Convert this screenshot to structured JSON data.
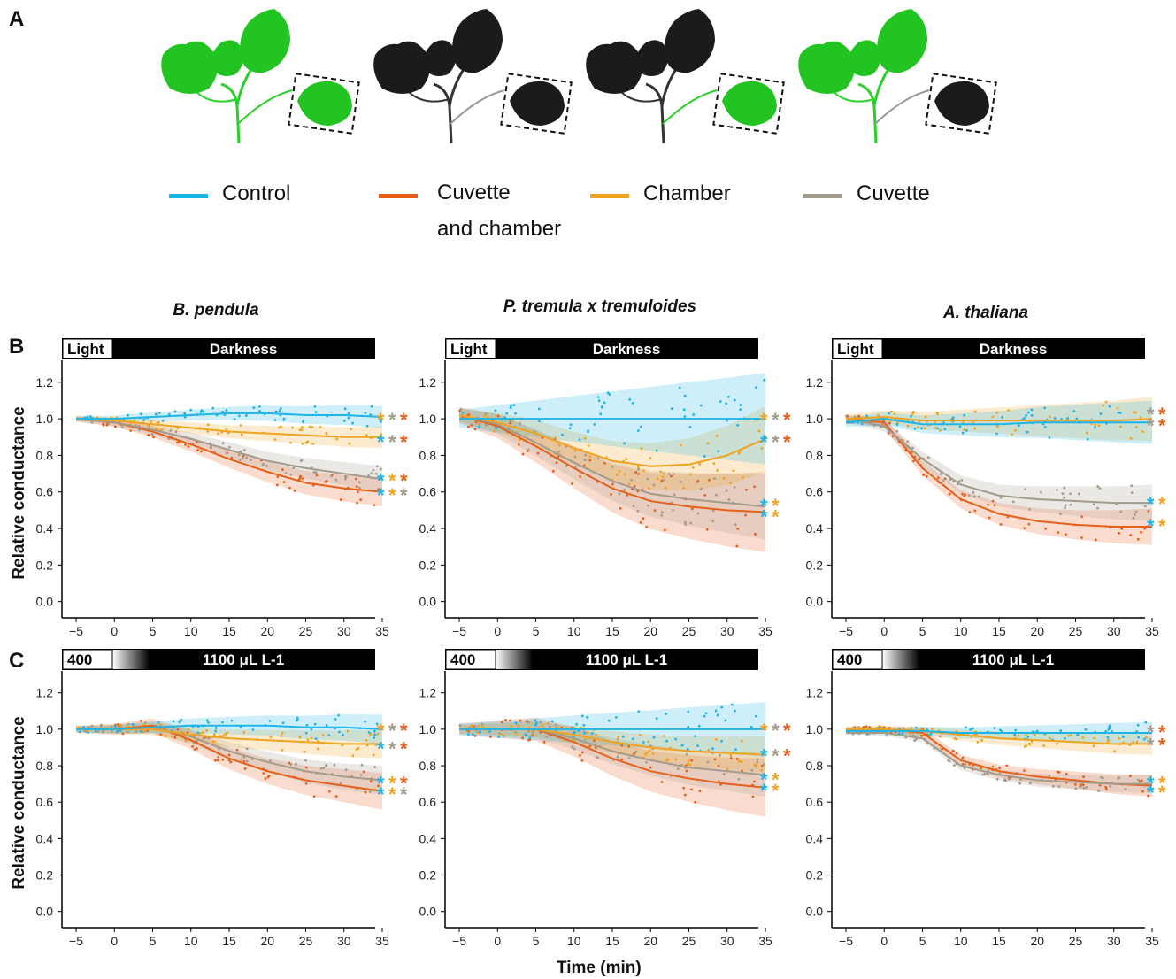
{
  "panels": {
    "a": "A",
    "b": "B",
    "c": "C"
  },
  "legend": [
    {
      "label": "Control",
      "color": "#1fb4e6"
    },
    {
      "label": "Cuvette",
      "label2": "and chamber",
      "color": "#e5601a"
    },
    {
      "label": "Chamber",
      "color": "#f0a320"
    },
    {
      "label": "Cuvette",
      "color": "#a39b8c"
    }
  ],
  "leaf_icons": [
    {
      "plant": "green",
      "boxed_leaf": "green"
    },
    {
      "plant": "black",
      "boxed_leaf": "black"
    },
    {
      "plant": "black",
      "boxed_leaf": "green"
    },
    {
      "plant": "green",
      "boxed_leaf": "black"
    }
  ],
  "species": [
    "B. pendula",
    "P. tremula x tremuloides",
    "A. thaliana"
  ],
  "row_b": {
    "bar_left": "Light",
    "bar_right": "Darkness"
  },
  "row_c": {
    "bar_left": "400",
    "bar_right": "1100 μL L-1"
  },
  "axes": {
    "ylabel": "Relative conductance",
    "xlabel": "Time (min)",
    "xticks": [
      -5,
      0,
      5,
      10,
      15,
      20,
      25,
      30,
      35
    ],
    "yticks": [
      0.0,
      0.2,
      0.4,
      0.6,
      0.8,
      1.0,
      1.2
    ],
    "xlim": [
      -5,
      35
    ],
    "ylim": [
      -0.05,
      1.32
    ]
  },
  "chart_data": [
    {
      "type": "line",
      "title": "B. pendula",
      "row": "B",
      "treatment": "Light / Darkness",
      "x": [
        -5,
        0,
        5,
        10,
        15,
        20,
        25,
        30,
        35
      ],
      "series": [
        {
          "name": "Control",
          "values": [
            1.0,
            1.0,
            1.01,
            1.02,
            1.03,
            1.03,
            1.02,
            1.02,
            1.01
          ],
          "band": 0.06,
          "stars": []
        },
        {
          "name": "Chamber",
          "values": [
            1.0,
            0.99,
            0.97,
            0.95,
            0.93,
            0.92,
            0.91,
            0.9,
            0.9
          ],
          "band": 0.06,
          "stars": [
            "Control",
            "Cuvette",
            "Cuvette and chamber"
          ]
        },
        {
          "name": "Cuvette",
          "values": [
            1.0,
            0.98,
            0.94,
            0.89,
            0.83,
            0.77,
            0.73,
            0.7,
            0.67
          ],
          "band": 0.07,
          "stars": [
            "Control",
            "Cuvette",
            "Cuvette and chamber"
          ]
        },
        {
          "name": "Cuvette and chamber",
          "values": [
            1.0,
            0.98,
            0.93,
            0.86,
            0.78,
            0.71,
            0.65,
            0.62,
            0.6
          ],
          "band": 0.08,
          "stars": [
            "Control",
            "Chamber",
            "Cuvette and chamber"
          ]
        }
      ],
      "star_rows": [
        {
          "y": 1.0,
          "colors": [
            "Chamber",
            "Cuvette",
            "Cuvette and chamber"
          ]
        },
        {
          "y": 0.88,
          "colors": [
            "Control",
            "Cuvette",
            "Cuvette and chamber"
          ]
        },
        {
          "y": 0.67,
          "colors": [
            "Control",
            "Chamber",
            "Cuvette and chamber"
          ]
        },
        {
          "y": 0.59,
          "colors": [
            "Control",
            "Chamber",
            "Cuvette"
          ]
        }
      ]
    },
    {
      "type": "line",
      "title": "P. tremula x tremuloides",
      "row": "B",
      "treatment": "Light / Darkness",
      "x": [
        -5,
        0,
        5,
        10,
        15,
        20,
        25,
        30,
        35
      ],
      "series": [
        {
          "name": "Control",
          "values": [
            1.0,
            1.0,
            1.0,
            1.0,
            1.0,
            1.0,
            1.0,
            1.0,
            1.0
          ],
          "band": 0.25,
          "stars": []
        },
        {
          "name": "Chamber",
          "values": [
            1.02,
            0.98,
            0.92,
            0.84,
            0.77,
            0.74,
            0.75,
            0.8,
            0.89
          ],
          "band": 0.18,
          "stars": []
        },
        {
          "name": "Cuvette",
          "values": [
            1.02,
            0.97,
            0.87,
            0.76,
            0.66,
            0.59,
            0.56,
            0.54,
            0.52
          ],
          "band": 0.18,
          "stars": []
        },
        {
          "name": "Cuvette and chamber",
          "values": [
            1.02,
            0.96,
            0.85,
            0.73,
            0.62,
            0.55,
            0.52,
            0.5,
            0.49
          ],
          "band": 0.22,
          "stars": []
        }
      ],
      "star_rows": [
        {
          "y": 1.0,
          "colors": [
            "Chamber",
            "Cuvette",
            "Cuvette and chamber"
          ]
        },
        {
          "y": 0.88,
          "colors": [
            "Control",
            "Cuvette",
            "Cuvette and chamber"
          ]
        },
        {
          "y": 0.53,
          "colors": [
            "Control",
            "Chamber"
          ]
        },
        {
          "y": 0.47,
          "colors": [
            "Control",
            "Chamber"
          ]
        }
      ]
    },
    {
      "type": "line",
      "title": "A. thaliana",
      "row": "B",
      "treatment": "Light / Darkness",
      "x": [
        -5,
        0,
        5,
        10,
        15,
        20,
        25,
        30,
        35
      ],
      "series": [
        {
          "name": "Control",
          "values": [
            0.98,
            1.0,
            0.97,
            0.97,
            0.97,
            0.98,
            0.98,
            0.98,
            0.98
          ],
          "band": 0.12,
          "stars": []
        },
        {
          "name": "Chamber",
          "values": [
            1.0,
            1.01,
            0.99,
            0.99,
            0.99,
            0.99,
            0.99,
            0.99,
            1.0
          ],
          "band": 0.12,
          "stars": []
        },
        {
          "name": "Cuvette",
          "values": [
            1.0,
            0.96,
            0.78,
            0.64,
            0.58,
            0.56,
            0.55,
            0.54,
            0.54
          ],
          "band": 0.1,
          "stars": []
        },
        {
          "name": "Cuvette and chamber",
          "values": [
            1.0,
            0.98,
            0.73,
            0.56,
            0.48,
            0.44,
            0.42,
            0.41,
            0.41
          ],
          "band": 0.1,
          "stars": []
        }
      ],
      "star_rows": [
        {
          "y": 1.03,
          "colors": [
            "Cuvette",
            "Cuvette and chamber"
          ]
        },
        {
          "y": 0.97,
          "colors": [
            "Cuvette",
            "Cuvette and chamber"
          ]
        },
        {
          "y": 0.54,
          "colors": [
            "Control",
            "Chamber"
          ]
        },
        {
          "y": 0.42,
          "colors": [
            "Control",
            "Chamber"
          ]
        }
      ]
    },
    {
      "type": "line",
      "title": "B. pendula",
      "row": "C",
      "treatment": "400 / 1100 μL L-1",
      "x": [
        -5,
        0,
        5,
        10,
        15,
        20,
        25,
        30,
        35
      ],
      "series": [
        {
          "name": "Control",
          "values": [
            1.0,
            1.0,
            1.01,
            1.02,
            1.02,
            1.02,
            1.01,
            1.01,
            1.0
          ],
          "band": 0.08,
          "stars": []
        },
        {
          "name": "Chamber",
          "values": [
            1.0,
            1.0,
            1.0,
            0.97,
            0.95,
            0.94,
            0.93,
            0.92,
            0.92
          ],
          "band": 0.08,
          "stars": []
        },
        {
          "name": "Cuvette",
          "values": [
            1.0,
            1.0,
            1.01,
            0.96,
            0.88,
            0.82,
            0.77,
            0.74,
            0.72
          ],
          "band": 0.08,
          "stars": []
        },
        {
          "name": "Cuvette and chamber",
          "values": [
            1.0,
            1.0,
            1.02,
            0.94,
            0.84,
            0.77,
            0.72,
            0.69,
            0.66
          ],
          "band": 0.1,
          "stars": []
        }
      ],
      "star_rows": [
        {
          "y": 1.0,
          "colors": [
            "Chamber",
            "Cuvette",
            "Cuvette and chamber"
          ]
        },
        {
          "y": 0.9,
          "colors": [
            "Control",
            "Cuvette",
            "Cuvette and chamber"
          ]
        },
        {
          "y": 0.71,
          "colors": [
            "Control",
            "Chamber",
            "Cuvette and chamber"
          ]
        },
        {
          "y": 0.65,
          "colors": [
            "Control",
            "Chamber",
            "Cuvette"
          ]
        }
      ]
    },
    {
      "type": "line",
      "title": "P. tremula x tremuloides",
      "row": "C",
      "treatment": "400 / 1100 μL L-1",
      "x": [
        -5,
        0,
        5,
        10,
        15,
        20,
        25,
        30,
        35
      ],
      "series": [
        {
          "name": "Control",
          "values": [
            1.0,
            1.0,
            1.0,
            1.0,
            1.0,
            1.0,
            1.0,
            1.0,
            1.0
          ],
          "band": 0.15,
          "stars": []
        },
        {
          "name": "Chamber",
          "values": [
            1.0,
            1.0,
            1.0,
            0.97,
            0.93,
            0.9,
            0.88,
            0.87,
            0.86
          ],
          "band": 0.1,
          "stars": []
        },
        {
          "name": "Cuvette",
          "values": [
            1.0,
            1.0,
            1.0,
            0.95,
            0.88,
            0.83,
            0.79,
            0.77,
            0.75
          ],
          "band": 0.12,
          "stars": []
        },
        {
          "name": "Cuvette and chamber",
          "values": [
            1.0,
            1.0,
            1.0,
            0.93,
            0.84,
            0.77,
            0.73,
            0.7,
            0.68
          ],
          "band": 0.16,
          "stars": []
        }
      ],
      "star_rows": [
        {
          "y": 1.0,
          "colors": [
            "Chamber",
            "Cuvette",
            "Cuvette and chamber"
          ]
        },
        {
          "y": 0.86,
          "colors": [
            "Control",
            "Cuvette",
            "Cuvette and chamber"
          ]
        },
        {
          "y": 0.73,
          "colors": [
            "Control",
            "Chamber"
          ]
        },
        {
          "y": 0.67,
          "colors": [
            "Control",
            "Chamber"
          ]
        }
      ]
    },
    {
      "type": "line",
      "title": "A. thaliana",
      "row": "C",
      "treatment": "400 / 1100 μL L-1",
      "x": [
        -5,
        0,
        5,
        10,
        15,
        20,
        25,
        30,
        35
      ],
      "series": [
        {
          "name": "Control",
          "values": [
            0.99,
            0.99,
            0.99,
            0.98,
            0.98,
            0.98,
            0.98,
            0.98,
            0.98
          ],
          "band": 0.06,
          "stars": []
        },
        {
          "name": "Chamber",
          "values": [
            1.0,
            1.0,
            0.99,
            0.97,
            0.95,
            0.94,
            0.93,
            0.92,
            0.92
          ],
          "band": 0.06,
          "stars": []
        },
        {
          "name": "Cuvette",
          "values": [
            0.98,
            0.98,
            0.95,
            0.8,
            0.75,
            0.72,
            0.71,
            0.7,
            0.7
          ],
          "band": 0.05,
          "stars": []
        },
        {
          "name": "Cuvette and chamber",
          "values": [
            1.0,
            1.0,
            0.98,
            0.83,
            0.77,
            0.74,
            0.72,
            0.7,
            0.69
          ],
          "band": 0.06,
          "stars": []
        }
      ],
      "star_rows": [
        {
          "y": 0.99,
          "colors": [
            "Cuvette",
            "Cuvette and chamber"
          ]
        },
        {
          "y": 0.92,
          "colors": [
            "Cuvette",
            "Cuvette and chamber"
          ]
        },
        {
          "y": 0.71,
          "colors": [
            "Control",
            "Chamber"
          ]
        },
        {
          "y": 0.66,
          "colors": [
            "Control",
            "Chamber"
          ]
        }
      ]
    }
  ]
}
